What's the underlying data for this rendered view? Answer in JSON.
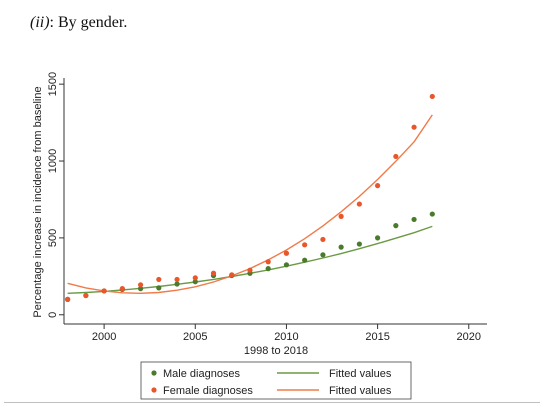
{
  "heading": {
    "label": "(ii)",
    "text": ": By gender."
  },
  "chart_data": {
    "type": "scatter",
    "xlabel": "1998 to 2018",
    "ylabel": "Percentage increase in incidence from baseline",
    "xlim": [
      1997.8,
      2021
    ],
    "ylim": [
      -60,
      1540
    ],
    "xticks": [
      2000,
      2005,
      2010,
      2015,
      2020
    ],
    "yticks": [
      0,
      500,
      1000,
      1500
    ],
    "grid": false,
    "legend_position": "bottom",
    "series": [
      {
        "name": "Male diagnoses",
        "kind": "scatter",
        "color": "#4a7a2c",
        "x": [
          1998,
          1999,
          2000,
          2001,
          2002,
          2003,
          2004,
          2005,
          2006,
          2007,
          2008,
          2009,
          2010,
          2011,
          2012,
          2013,
          2014,
          2015,
          2016,
          2017,
          2018
        ],
        "y": [
          100,
          125,
          155,
          165,
          170,
          175,
          200,
          215,
          255,
          255,
          270,
          300,
          325,
          355,
          390,
          440,
          460,
          500,
          580,
          620,
          655
        ]
      },
      {
        "name": "Female diagnoses",
        "kind": "scatter",
        "color": "#e8562a",
        "x": [
          1998,
          1999,
          2000,
          2001,
          2002,
          2003,
          2004,
          2005,
          2006,
          2007,
          2008,
          2009,
          2010,
          2011,
          2012,
          2013,
          2014,
          2015,
          2016,
          2017,
          2018
        ],
        "y": [
          100,
          125,
          155,
          170,
          195,
          230,
          230,
          240,
          270,
          260,
          290,
          345,
          400,
          455,
          490,
          640,
          720,
          840,
          1030,
          1220,
          1420
        ]
      },
      {
        "name": "Fitted values",
        "kind": "line",
        "color": "#6b9a45",
        "x": [
          1998,
          1999,
          2000,
          2001,
          2002,
          2003,
          2004,
          2005,
          2006,
          2007,
          2008,
          2009,
          2010,
          2011,
          2012,
          2013,
          2014,
          2015,
          2016,
          2017,
          2018
        ],
        "y": [
          140,
          145,
          152,
          161,
          172,
          184,
          198,
          213,
          230,
          249,
          270,
          292,
          316,
          342,
          369,
          398,
          430,
          463,
          498,
          534,
          575
        ]
      },
      {
        "name": "Fitted values",
        "kind": "line",
        "color": "#f07a4a",
        "x": [
          1998,
          1999,
          2000,
          2001,
          2002,
          2003,
          2004,
          2005,
          2006,
          2007,
          2008,
          2009,
          2010,
          2011,
          2012,
          2013,
          2014,
          2015,
          2016,
          2017,
          2018
        ],
        "y": [
          205,
          175,
          155,
          143,
          140,
          145,
          160,
          182,
          213,
          253,
          300,
          357,
          421,
          495,
          578,
          670,
          770,
          880,
          998,
          1125,
          1300
        ]
      }
    ]
  }
}
